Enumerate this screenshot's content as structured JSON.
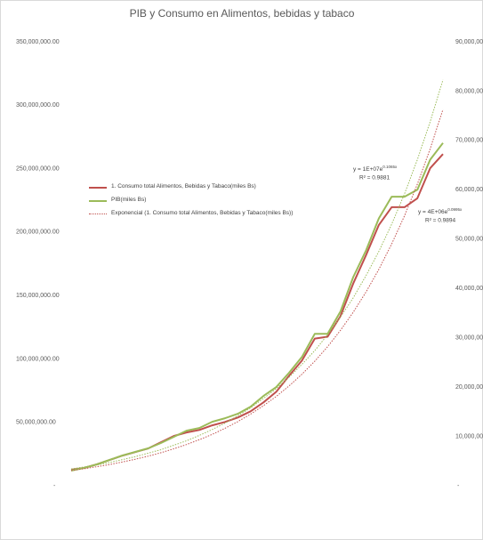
{
  "chart_data": {
    "type": "line",
    "title": "PIB y Consumo en Alimentos, bebidas y tabaco",
    "ylim": [
      0,
      350000000
    ],
    "yticks": [
      {
        "value": 0,
        "label": "-"
      },
      {
        "value": 50000000,
        "label": "50,000,000.00"
      },
      {
        "value": 100000000,
        "label": "100,000,000.00"
      },
      {
        "value": 150000000,
        "label": "150,000,000.00"
      },
      {
        "value": 200000000,
        "label": "200,000,000.00"
      },
      {
        "value": 250000000,
        "label": "250,000,000.00"
      },
      {
        "value": 300000000,
        "label": "300,000,000.00"
      },
      {
        "value": 350000000,
        "label": "350,000,000.00"
      }
    ],
    "y2lim": [
      0,
      90000000
    ],
    "y2ticks": [
      {
        "value": 0,
        "label": "-"
      },
      {
        "value": 10000000,
        "label": "10,000,000.00"
      },
      {
        "value": 20000000,
        "label": "20,000,000.00"
      },
      {
        "value": 30000000,
        "label": "30,000,000.00"
      },
      {
        "value": 40000000,
        "label": "40,000,000.00"
      },
      {
        "value": 50000000,
        "label": "50,000,000.00"
      },
      {
        "value": 60000000,
        "label": "60,000,000.00"
      },
      {
        "value": 70000000,
        "label": "70,000,000.00"
      },
      {
        "value": 80000000,
        "label": "80,000,000.00"
      },
      {
        "value": 90000000,
        "label": "90,000,000.00"
      }
    ],
    "grid": false,
    "legend": "left",
    "series": [
      {
        "name": "1. Consumo total Alimentos, Bebidas y Tabaco(miles Bs)",
        "color": "#c0504d",
        "style": "solid",
        "width": 2,
        "axis": "y",
        "values": [
          12600000,
          14000000,
          16800000,
          20300000,
          23800000,
          26600000,
          29400000,
          34300000,
          39200000,
          42000000,
          44000000,
          47600000,
          50300000,
          53800000,
          58700000,
          65700000,
          74100000,
          86700000,
          98600000,
          116000000,
          117500000,
          133600000,
          159400000,
          181800000,
          205600000,
          219600000,
          219600000,
          226600000,
          250300000,
          261500000
        ]
      },
      {
        "name": "PIB(miles Bs)",
        "color": "#9bbb59",
        "style": "solid",
        "width": 2,
        "axis": "y2",
        "values": [
          3060000,
          3600000,
          4320000,
          5230000,
          6130000,
          6850000,
          7570000,
          8650000,
          9910000,
          11170000,
          11710000,
          12970000,
          13690000,
          14590000,
          16040000,
          18200000,
          20000000,
          22900000,
          26100000,
          30800000,
          30800000,
          35300000,
          42300000,
          47700000,
          54200000,
          58600000,
          58600000,
          60000000,
          66100000,
          69500000
        ]
      },
      {
        "name": "Exponencial (1. Consumo total Alimentos, Bebidas y Tabaco(miles Bs))",
        "color": "#c0504d",
        "style": "dotted",
        "width": 1,
        "axis": "y",
        "values": [
          12000000,
          13400000,
          15000000,
          16700000,
          18700000,
          20900000,
          23300000,
          26000000,
          29100000,
          32500000,
          36300000,
          40500000,
          45300000,
          50600000,
          56500000,
          63100000,
          70400000,
          78700000,
          87900000,
          98200000,
          109600000,
          122500000,
          136800000,
          152800000,
          170600000,
          190600000,
          212900000,
          237800000,
          265600000,
          296700000
        ]
      },
      {
        "color": "#9bbb59",
        "style": "dotted",
        "width": 1,
        "axis": "y2",
        "values": [
          3400000,
          3800000,
          4200000,
          4700000,
          5300000,
          5900000,
          6600000,
          7300000,
          8200000,
          9100000,
          10200000,
          11400000,
          12700000,
          14200000,
          15800000,
          17700000,
          19700000,
          22000000,
          24600000,
          27400000,
          30600000,
          34200000,
          38100000,
          42600000,
          47500000,
          53000000,
          59200000,
          66100000,
          73800000,
          82300000
        ]
      }
    ],
    "annotations": [
      {
        "base": "y = 1E+07e",
        "exponent": "0.1065x",
        "r2": "R² = 0.9881"
      },
      {
        "base": "y = 4E+06e",
        "exponent": "0.0995x",
        "r2": "R² = 0.9894"
      }
    ]
  }
}
